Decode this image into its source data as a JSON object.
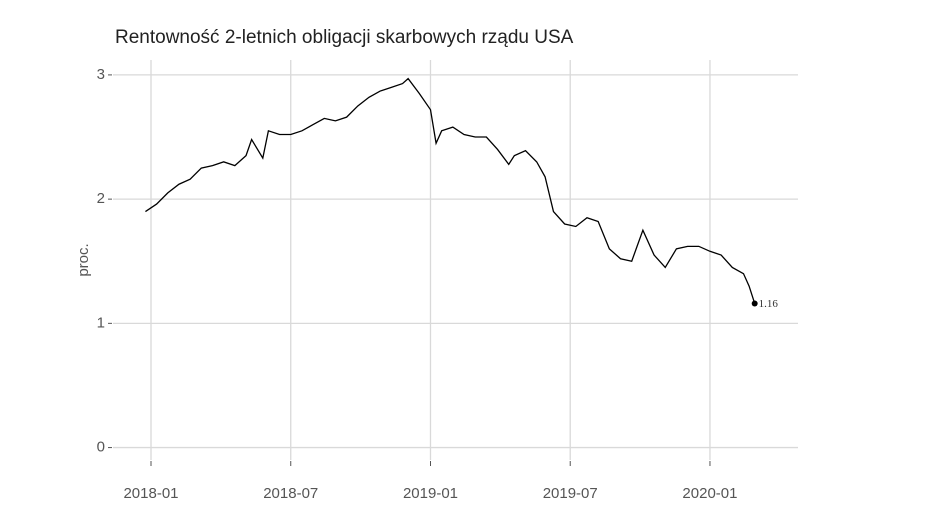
{
  "chart_data": {
    "type": "line",
    "title": "Rentowność 2-letnich obligacji skarbowych rządu USA",
    "ylabel": "proc.",
    "x": [
      2017.98,
      2018.02,
      2018.06,
      2018.1,
      2018.14,
      2018.18,
      2018.22,
      2018.26,
      2018.3,
      2018.34,
      2018.36,
      2018.4,
      2018.42,
      2018.46,
      2018.5,
      2018.54,
      2018.58,
      2018.62,
      2018.66,
      2018.7,
      2018.74,
      2018.78,
      2018.82,
      2018.86,
      2018.9,
      2018.92,
      2018.96,
      2019.0,
      2019.02,
      2019.04,
      2019.08,
      2019.12,
      2019.16,
      2019.2,
      2019.24,
      2019.28,
      2019.3,
      2019.34,
      2019.38,
      2019.41,
      2019.44,
      2019.48,
      2019.52,
      2019.56,
      2019.6,
      2019.64,
      2019.68,
      2019.72,
      2019.76,
      2019.8,
      2019.84,
      2019.88,
      2019.92,
      2019.96,
      2020.0,
      2020.04,
      2020.08,
      2020.12,
      2020.14,
      2020.16
    ],
    "values": [
      1.9,
      1.96,
      2.05,
      2.12,
      2.16,
      2.25,
      2.27,
      2.3,
      2.27,
      2.35,
      2.48,
      2.33,
      2.55,
      2.52,
      2.52,
      2.55,
      2.6,
      2.65,
      2.63,
      2.66,
      2.75,
      2.82,
      2.87,
      2.9,
      2.93,
      2.97,
      2.85,
      2.72,
      2.45,
      2.55,
      2.58,
      2.52,
      2.5,
      2.5,
      2.4,
      2.28,
      2.35,
      2.39,
      2.3,
      2.18,
      1.9,
      1.8,
      1.78,
      1.85,
      1.82,
      1.6,
      1.52,
      1.5,
      1.75,
      1.55,
      1.45,
      1.6,
      1.62,
      1.62,
      1.58,
      1.55,
      1.45,
      1.4,
      1.3,
      1.16
    ],
    "color": "#000000",
    "xlim": [
      2017.864,
      2020.315
    ],
    "xticks": [
      {
        "value": 2018.0,
        "label": "2018-01"
      },
      {
        "value": 2018.5,
        "label": "2018-07"
      },
      {
        "value": 2019.0,
        "label": "2019-01"
      },
      {
        "value": 2019.5,
        "label": "2019-07"
      },
      {
        "value": 2020.0,
        "label": "2020-01"
      }
    ],
    "ylim": [
      -0.1,
      3.12
    ],
    "yticks": [
      0,
      1,
      2,
      3
    ],
    "grid": true
  }
}
